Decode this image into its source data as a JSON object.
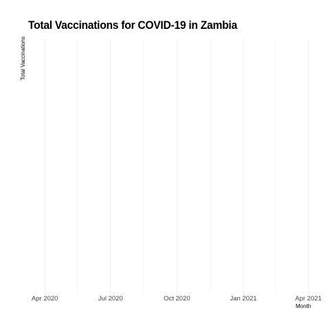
{
  "chart_data": {
    "type": "line",
    "title": "Total Vaccinations for COVID-19 in Zambia",
    "xlabel": "Month",
    "ylabel": "Total Vaccinations",
    "x_ticks": [
      "Apr 2020",
      "Jul 2020",
      "Oct 2020",
      "Jan 2021",
      "Apr 2021"
    ],
    "x_tick_dates": [
      "2020-04-01",
      "2020-07-01",
      "2020-10-01",
      "2021-01-01",
      "2021-04-01"
    ],
    "x_minor_dates": [
      "2020-05-16",
      "2020-08-16",
      "2020-11-16",
      "2021-02-14"
    ],
    "xlim": [
      "2020-03-09",
      "2021-04-10"
    ],
    "series": [],
    "grid": true,
    "legend": "none"
  }
}
